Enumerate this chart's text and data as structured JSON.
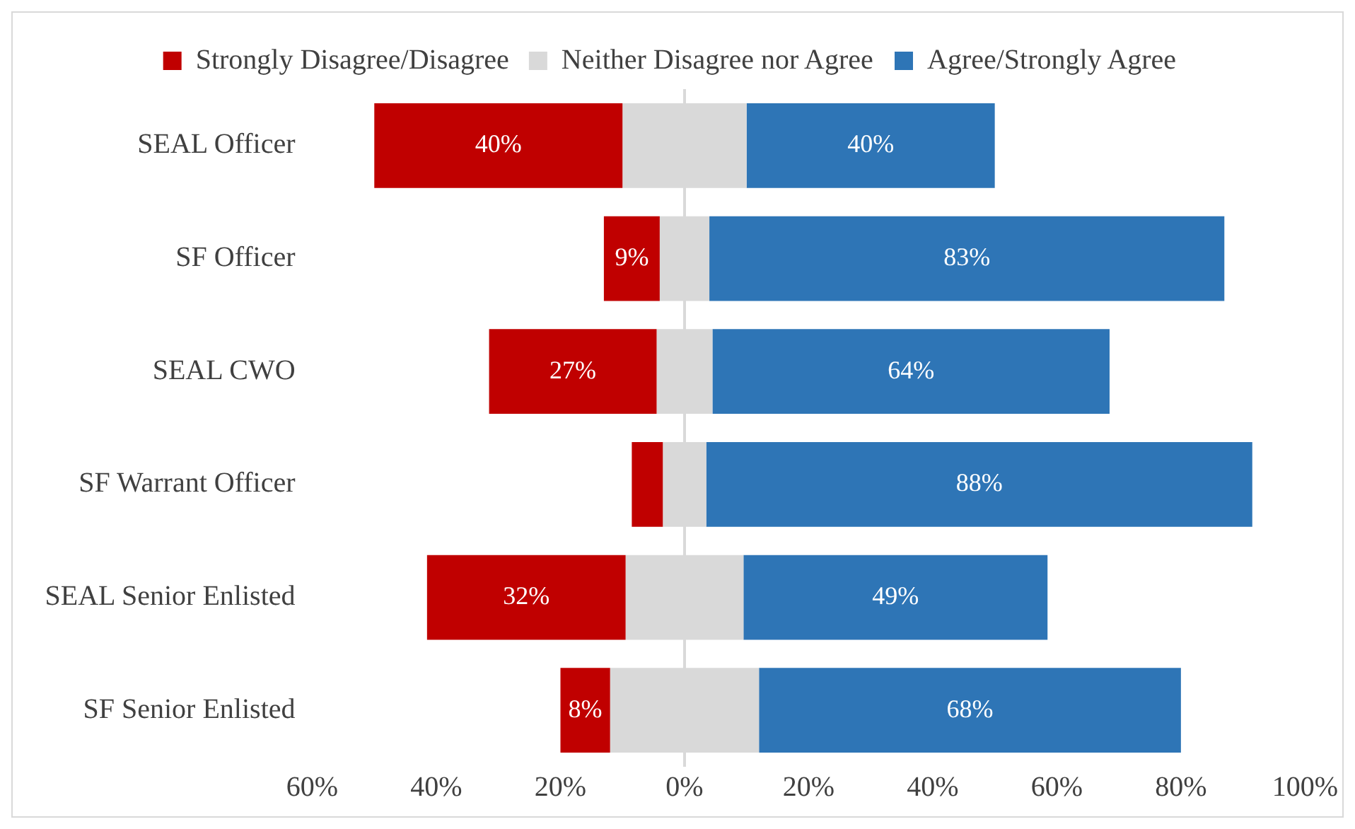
{
  "chart_data": {
    "type": "bar",
    "orientation": "horizontal",
    "stacked": true,
    "categories": [
      "SEAL Officer",
      "SF Officer",
      "SEAL CWO",
      "SF Warrant Officer",
      "SEAL Senior Enlisted",
      "SF Senior Enlisted"
    ],
    "series": [
      {
        "name": "Strongly Disagree/Disagree",
        "color": "#c00000",
        "values": [
          40,
          9,
          27,
          5,
          32,
          8
        ],
        "base": [
          -50,
          -13,
          -31.5,
          -8.5,
          -41.5,
          -20
        ],
        "value_labels": [
          "40%",
          "9%",
          "27%",
          null,
          "32%",
          "8%"
        ]
      },
      {
        "name": "Neither Disagree nor Agree",
        "color": "#d9d9d9",
        "values": [
          20,
          8,
          9,
          7,
          19,
          24
        ],
        "base": [
          -10,
          -4,
          -4.5,
          -3.5,
          -9.5,
          -12
        ]
      },
      {
        "name": "Agree/Strongly Agree",
        "color": "#2e75b6",
        "values": [
          40,
          83,
          64,
          88,
          49,
          68
        ],
        "base": [
          10,
          4,
          4.5,
          3.5,
          9.5,
          12
        ],
        "value_labels": [
          "40%",
          "83%",
          "64%",
          "88%",
          "49%",
          "68%"
        ]
      }
    ],
    "xlim": [
      -60,
      100
    ],
    "xticks": [
      {
        "value": -60,
        "label": "60%"
      },
      {
        "value": -40,
        "label": "40%"
      },
      {
        "value": -20,
        "label": "20%"
      },
      {
        "value": 0,
        "label": "0%"
      },
      {
        "value": 20,
        "label": "20%"
      },
      {
        "value": 40,
        "label": "40%"
      },
      {
        "value": 60,
        "label": "60%"
      },
      {
        "value": 80,
        "label": "80%"
      },
      {
        "value": 100,
        "label": "100%"
      }
    ],
    "ref_lines": [
      {
        "axis": "x",
        "value": 0,
        "color": "#d9d9d9"
      }
    ],
    "grid": false,
    "legend": "top"
  }
}
